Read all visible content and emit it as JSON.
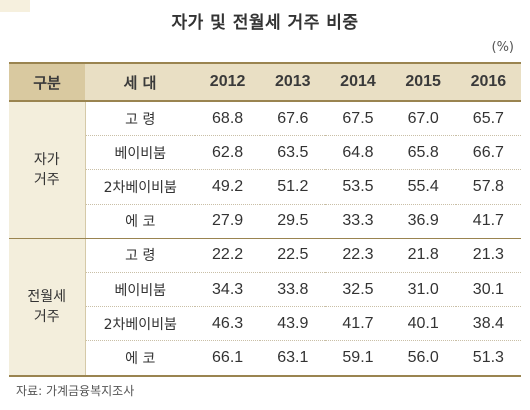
{
  "title": "자가 및 전월세 거주 비중",
  "unit": "(%)",
  "source": "자료: 가계금융복지조사",
  "header": {
    "group": "구분",
    "generation": "세 대",
    "years": [
      "2012",
      "2013",
      "2014",
      "2015",
      "2016"
    ]
  },
  "chart_data": {
    "type": "table",
    "title": "자가 및 전월세 거주 비중",
    "unit": "(%)",
    "columns": [
      "2012",
      "2013",
      "2014",
      "2015",
      "2016"
    ],
    "groups": [
      {
        "name": "자가 거주",
        "name_lines": [
          "자가",
          "거주"
        ],
        "rows": [
          {
            "label": "고 령",
            "values": [
              "68.8",
              "67.6",
              "67.5",
              "67.0",
              "65.7"
            ]
          },
          {
            "label": "베이비붐",
            "values": [
              "62.8",
              "63.5",
              "64.8",
              "65.8",
              "66.7"
            ]
          },
          {
            "label": "2차베이비붐",
            "values": [
              "49.2",
              "51.2",
              "53.5",
              "55.4",
              "57.8"
            ]
          },
          {
            "label": "에 코",
            "values": [
              "27.9",
              "29.5",
              "33.3",
              "36.9",
              "41.7"
            ]
          }
        ]
      },
      {
        "name": "전월세 거주",
        "name_lines": [
          "전월세",
          "거주"
        ],
        "rows": [
          {
            "label": "고 령",
            "values": [
              "22.2",
              "22.5",
              "22.3",
              "21.8",
              "21.3"
            ]
          },
          {
            "label": "베이비붐",
            "values": [
              "34.3",
              "33.8",
              "32.5",
              "31.0",
              "30.1"
            ]
          },
          {
            "label": "2차베이비붐",
            "values": [
              "46.3",
              "43.9",
              "41.7",
              "40.1",
              "38.4"
            ]
          },
          {
            "label": "에 코",
            "values": [
              "66.1",
              "63.1",
              "59.1",
              "56.0",
              "51.3"
            ]
          }
        ]
      }
    ],
    "source": "자료: 가계금융복지조사"
  }
}
